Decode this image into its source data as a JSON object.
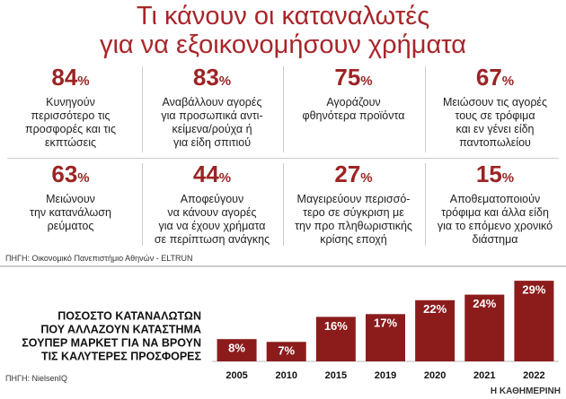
{
  "title": [
    "Τι κάνουν οι καταναλωτές",
    "για να εξοικονομήσουν χρήματα"
  ],
  "stats": [
    {
      "value": 84,
      "unit": "%",
      "lines": [
        "Κυνηγούν",
        "περισσότερο τις",
        "προσφορές και τις",
        "εκπτώσεις"
      ]
    },
    {
      "value": 83,
      "unit": "%",
      "lines": [
        "Αναβάλλουν αγορές",
        "για προσωπικά αντι-",
        "κείμενα/ρούχα ή",
        "για είδη σπιτιού"
      ]
    },
    {
      "value": 75,
      "unit": "%",
      "lines": [
        "Αγοράζουν",
        "φθηνότερα προϊόντα"
      ]
    },
    {
      "value": 67,
      "unit": "%",
      "lines": [
        "Μειώσουν τις αγορές",
        "τους σε τρόφιμα",
        "και εν γένει είδη",
        "παντοπωλείου"
      ]
    },
    {
      "value": 63,
      "unit": "%",
      "lines": [
        "Μειώνουν",
        "την κατανάλωση",
        "ρεύματος"
      ]
    },
    {
      "value": 44,
      "unit": "%",
      "lines": [
        "Αποφεύγουν",
        "να κάνουν αγορές",
        "για να έχουν χρήματα",
        "σε περίπτωση ανάγκης"
      ]
    },
    {
      "value": 27,
      "unit": "%",
      "lines": [
        "Μαγειρεύουν περισσό-",
        "τερο σε σύγκριση με",
        "την προ πληθωριστικής",
        "κρίσης εποχή"
      ]
    },
    {
      "value": 15,
      "unit": "%",
      "lines": [
        "Αποθεματοποιούν",
        "τρόφιμα και άλλα είδη",
        "για το επόμενο χρονικό",
        "διάστημα"
      ]
    }
  ],
  "source_top": "ΠΗΓΗ: Οικονομικό Πανεπιστήμιο Αθηνών - ELTRUN",
  "chart_data": {
    "type": "bar",
    "title": [
      "ΠΟΣΟΣΤΟ ΚΑΤΑΝΑΛΩΤΩΝ",
      "ΠΟΥ ΑΛΛΑΖΟΥΝ ΚΑΤΑΣΤΗΜΑ",
      "ΣΟΥΠΕΡ ΜΑΡΚΕΤ ΓΙΑ ΝΑ ΒΡΟΥΝ",
      "ΤΙΣ ΚΑΛΥΤΕΡΕΣ ΠΡΟΣΦΟΡΕΣ"
    ],
    "categories": [
      "2005",
      "2010",
      "2015",
      "2019",
      "2020",
      "2021",
      "2022"
    ],
    "values": [
      8,
      7,
      16,
      17,
      22,
      24,
      29
    ],
    "value_labels": [
      "8%",
      "7%",
      "16%",
      "17%",
      "22%",
      "24%",
      "29%"
    ],
    "color": "#8c1c1c"
  },
  "source_bottom": "ΠΗΓΗ: NielsenIQ",
  "credit": "Η ΚΑΘΗΜΕΡΙΝΗ"
}
